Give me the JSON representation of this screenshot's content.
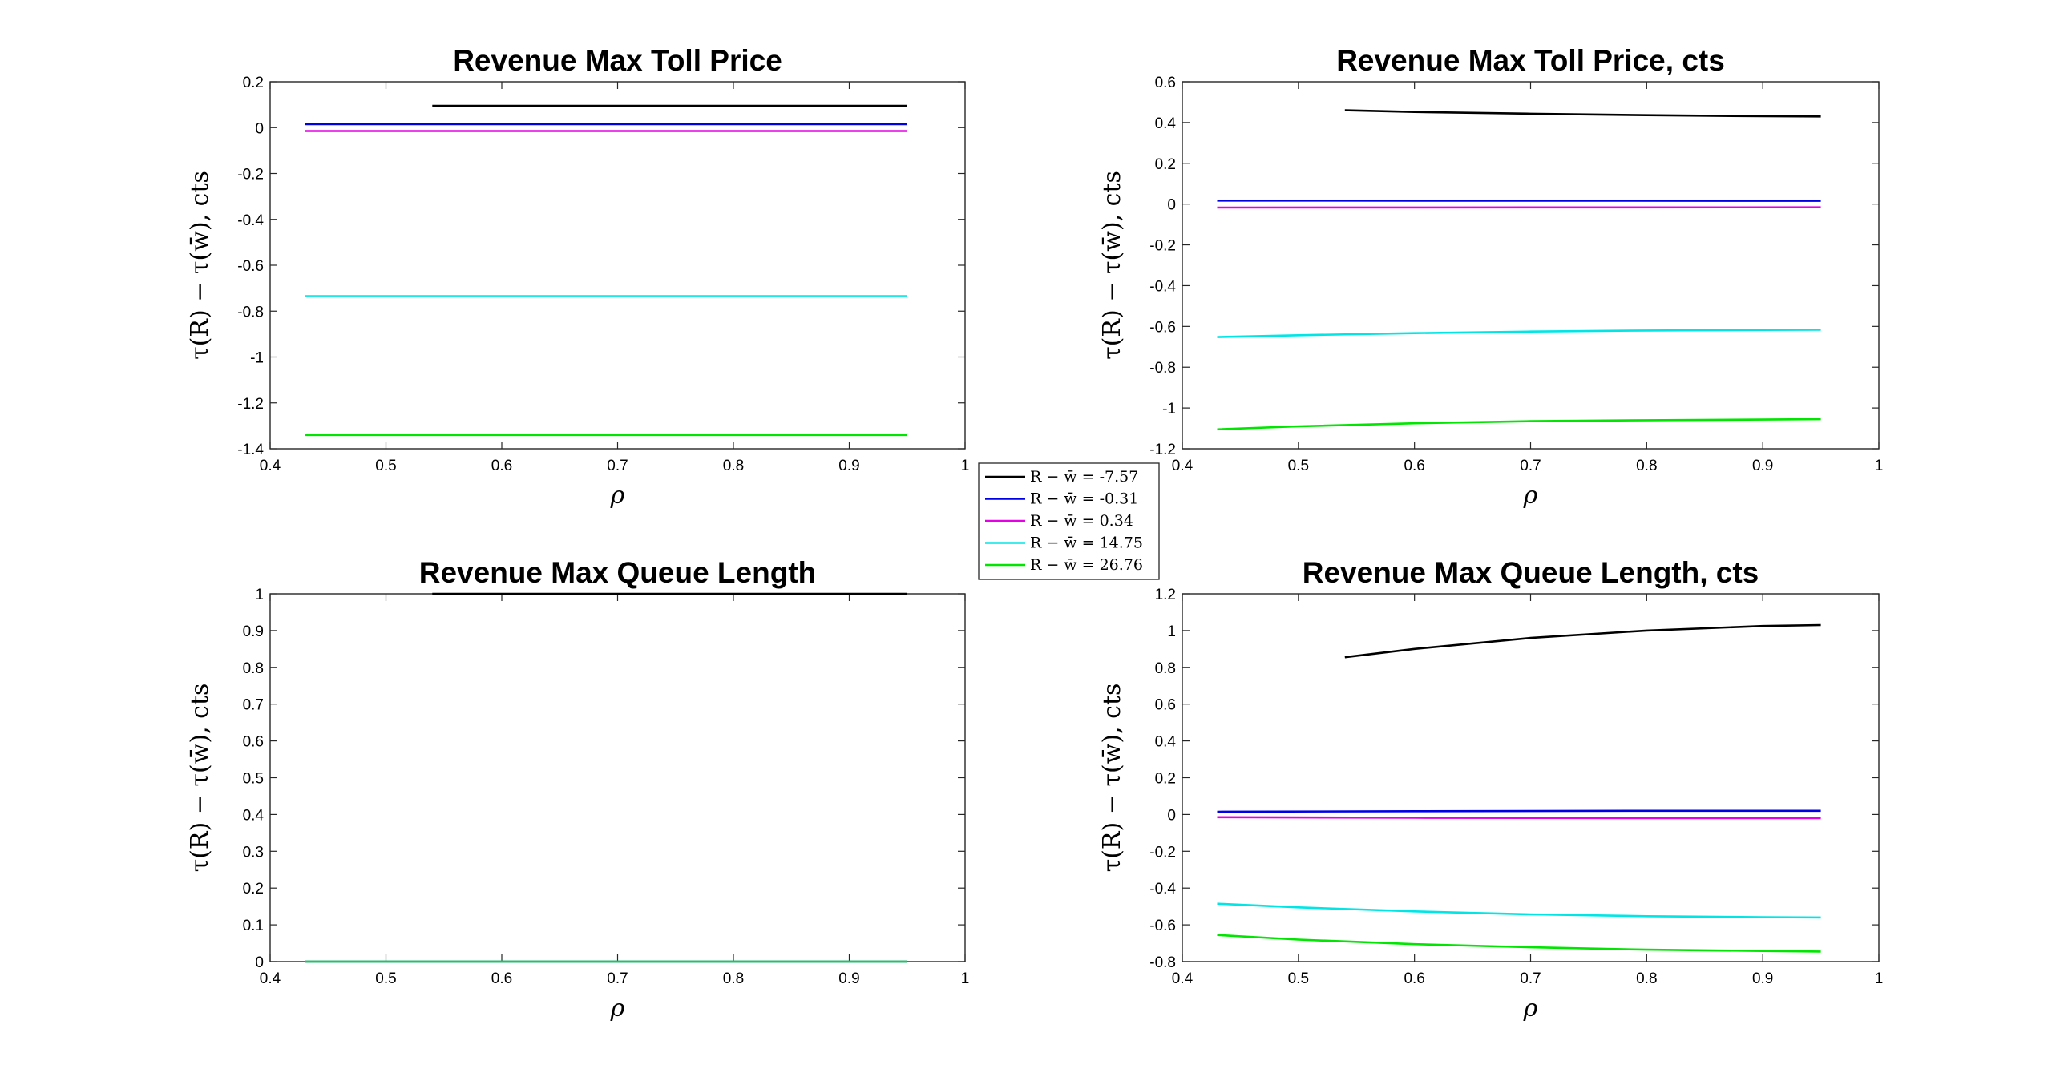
{
  "legend": {
    "entries": [
      {
        "label": "R − w̄ = -7.57",
        "color": "#000000"
      },
      {
        "label": "R − w̄ = -0.31",
        "color": "#0000e6"
      },
      {
        "label": "R − w̄ = 0.34",
        "color": "#e600e6"
      },
      {
        "label": "R − w̄ = 14.75",
        "color": "#00e6e6"
      },
      {
        "label": "R − w̄ = 26.76",
        "color": "#00e600"
      }
    ]
  },
  "chart_data": [
    {
      "type": "line",
      "title": "Revenue Max Toll Price",
      "xlabel": "ρ",
      "ylabel": "τ(R) − τ(w̄), cts",
      "xlim": [
        0.4,
        1
      ],
      "ylim": [
        -1.4,
        0.2
      ],
      "xticks": [
        0.4,
        0.5,
        0.6,
        0.7,
        0.8,
        0.9,
        1
      ],
      "yticks": [
        -1.4,
        -1.2,
        -1,
        -0.8,
        -0.6,
        -0.4,
        -0.2,
        0,
        0.2
      ],
      "series": [
        {
          "name": "R − w̄ = -7.57",
          "color": "#000000",
          "x": [
            0.54,
            0.95
          ],
          "y": [
            0.095,
            0.095
          ]
        },
        {
          "name": "R − w̄ = -0.31",
          "color": "#0000e6",
          "x": [
            0.43,
            0.95
          ],
          "y": [
            0.015,
            0.015
          ]
        },
        {
          "name": "R − w̄ = 0.34",
          "color": "#e600e6",
          "x": [
            0.43,
            0.95
          ],
          "y": [
            -0.015,
            -0.015
          ]
        },
        {
          "name": "R − w̄ = 14.75",
          "color": "#00e6e6",
          "x": [
            0.43,
            0.95
          ],
          "y": [
            -0.735,
            -0.735
          ]
        },
        {
          "name": "R − w̄ = 26.76",
          "color": "#00e600",
          "x": [
            0.43,
            0.95
          ],
          "y": [
            -1.34,
            -1.34
          ]
        }
      ]
    },
    {
      "type": "line",
      "title": "Revenue Max Toll Price, cts",
      "xlabel": "ρ",
      "ylabel": "τ(R) − τ(w̄), cts",
      "xlim": [
        0.4,
        1
      ],
      "ylim": [
        -1.2,
        0.6
      ],
      "xticks": [
        0.4,
        0.5,
        0.6,
        0.7,
        0.8,
        0.9,
        1
      ],
      "yticks": [
        -1.2,
        -1,
        -0.8,
        -0.6,
        -0.4,
        -0.2,
        0,
        0.2,
        0.4,
        0.6
      ],
      "series": [
        {
          "name": "R − w̄ = -7.57",
          "color": "#000000",
          "x": [
            0.54,
            0.6,
            0.7,
            0.8,
            0.9,
            0.95
          ],
          "y": [
            0.46,
            0.452,
            0.443,
            0.436,
            0.431,
            0.43
          ]
        },
        {
          "name": "R − w̄ = -0.31",
          "color": "#0000e6",
          "x": [
            0.43,
            0.95
          ],
          "y": [
            0.017,
            0.016
          ]
        },
        {
          "name": "R − w̄ = 0.34",
          "color": "#e600e6",
          "x": [
            0.43,
            0.95
          ],
          "y": [
            -0.017,
            -0.016
          ]
        },
        {
          "name": "R − w̄ = 14.75",
          "color": "#00e6e6",
          "x": [
            0.43,
            0.5,
            0.6,
            0.7,
            0.8,
            0.9,
            0.95
          ],
          "y": [
            -0.652,
            -0.643,
            -0.633,
            -0.625,
            -0.62,
            -0.617,
            -0.616
          ]
        },
        {
          "name": "R − w̄ = 26.76",
          "color": "#00e600",
          "x": [
            0.43,
            0.5,
            0.6,
            0.7,
            0.8,
            0.9,
            0.95
          ],
          "y": [
            -1.105,
            -1.09,
            -1.075,
            -1.065,
            -1.06,
            -1.057,
            -1.055
          ]
        }
      ]
    },
    {
      "type": "line",
      "title": "Revenue Max Queue Length",
      "xlabel": "ρ",
      "ylabel": "τ(R) − τ(w̄), cts",
      "xlim": [
        0.4,
        1
      ],
      "ylim": [
        0,
        1
      ],
      "xticks": [
        0.4,
        0.5,
        0.6,
        0.7,
        0.8,
        0.9,
        1
      ],
      "yticks": [
        0,
        0.1,
        0.2,
        0.3,
        0.4,
        0.5,
        0.6,
        0.7,
        0.8,
        0.9,
        1
      ],
      "series": [
        {
          "name": "R − w̄ = -7.57",
          "color": "#000000",
          "x": [
            0.54,
            0.95
          ],
          "y": [
            1,
            1
          ]
        },
        {
          "name": "R − w̄ = -0.31",
          "color": "#0000e6",
          "x": [
            0.43,
            0.95
          ],
          "y": [
            0,
            0
          ]
        },
        {
          "name": "R − w̄ = 0.34",
          "color": "#e600e6",
          "x": [
            0.43,
            0.95
          ],
          "y": [
            0,
            0
          ]
        },
        {
          "name": "R − w̄ = 14.75",
          "color": "#00e6e6",
          "x": [
            0.43,
            0.95
          ],
          "y": [
            0,
            0
          ]
        },
        {
          "name": "R − w̄ = 26.76",
          "color": "#00e600",
          "x": [
            0.43,
            0.95
          ],
          "y": [
            0,
            0
          ]
        }
      ]
    },
    {
      "type": "line",
      "title": "Revenue Max Queue Length, cts",
      "xlabel": "ρ",
      "ylabel": "τ(R) − τ(w̄), cts",
      "xlim": [
        0.4,
        1
      ],
      "ylim": [
        -0.8,
        1.2
      ],
      "xticks": [
        0.4,
        0.5,
        0.6,
        0.7,
        0.8,
        0.9,
        1
      ],
      "yticks": [
        -0.8,
        -0.6,
        -0.4,
        -0.2,
        0,
        0.2,
        0.4,
        0.6,
        0.8,
        1,
        1.2
      ],
      "series": [
        {
          "name": "R − w̄ = -7.57",
          "color": "#000000",
          "x": [
            0.54,
            0.6,
            0.7,
            0.8,
            0.9,
            0.95
          ],
          "y": [
            0.855,
            0.9,
            0.96,
            1.0,
            1.025,
            1.03
          ]
        },
        {
          "name": "R − w̄ = -0.31",
          "color": "#0000e6",
          "x": [
            0.43,
            0.6,
            0.8,
            0.95
          ],
          "y": [
            0.015,
            0.018,
            0.02,
            0.02
          ]
        },
        {
          "name": "R − w̄ = 0.34",
          "color": "#e600e6",
          "x": [
            0.43,
            0.6,
            0.8,
            0.95
          ],
          "y": [
            -0.015,
            -0.018,
            -0.02,
            -0.02
          ]
        },
        {
          "name": "R − w̄ = 14.75",
          "color": "#00e6e6",
          "x": [
            0.43,
            0.5,
            0.6,
            0.7,
            0.8,
            0.9,
            0.95
          ],
          "y": [
            -0.485,
            -0.505,
            -0.527,
            -0.543,
            -0.553,
            -0.558,
            -0.56
          ]
        },
        {
          "name": "R − w̄ = 26.76",
          "color": "#00e600",
          "x": [
            0.43,
            0.5,
            0.6,
            0.7,
            0.8,
            0.9,
            0.95
          ],
          "y": [
            -0.655,
            -0.68,
            -0.705,
            -0.722,
            -0.735,
            -0.742,
            -0.745
          ]
        }
      ]
    }
  ]
}
